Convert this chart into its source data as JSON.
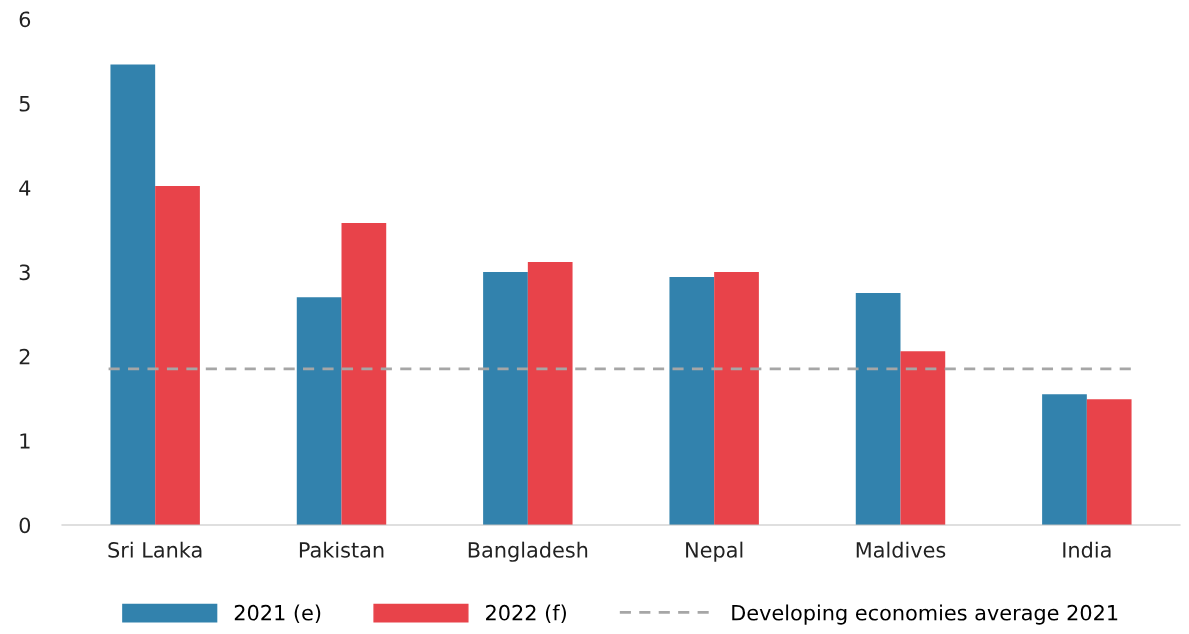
{
  "chart_data": {
    "type": "bar",
    "categories": [
      "Sri Lanka",
      "Pakistan",
      "Bangladesh",
      "Nepal",
      "Maldives",
      "India"
    ],
    "series": [
      {
        "name": "2021 (e)",
        "color": "#3282ad",
        "values": [
          5.46,
          2.7,
          3.0,
          2.94,
          2.75,
          1.55
        ]
      },
      {
        "name": "2022 (f)",
        "color": "#e8434a",
        "values": [
          4.02,
          3.58,
          3.12,
          3.0,
          2.06,
          1.49
        ]
      }
    ],
    "ylim": [
      0,
      6
    ],
    "yticks": [
      0,
      1,
      2,
      3,
      4,
      5,
      6
    ],
    "ref_lines": [
      {
        "axis": "y",
        "value": 1.85,
        "label": "Developing economies average 2021",
        "color": "#a6a6a6",
        "line_style": "dashed"
      }
    ],
    "legend": "bottom",
    "grid": false
  }
}
